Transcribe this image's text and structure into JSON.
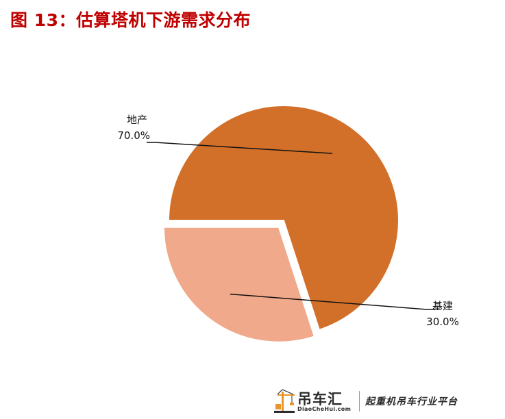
{
  "figure": {
    "title": "图 13：估算塔机下游需求分布"
  },
  "chart_data": {
    "type": "pie",
    "title": "",
    "slices": [
      {
        "label": "地产",
        "value": 70.0,
        "value_label": "70.0%",
        "color": "#d2702a",
        "exploded": false
      },
      {
        "label": "基建",
        "value": 30.0,
        "value_label": "30.0%",
        "color": "#f0a98a",
        "exploded": true
      }
    ],
    "legend": "none",
    "label_style": "outside with leader lines"
  },
  "watermark": {
    "brand": "吊车汇",
    "url": "DiaoCheHui.com",
    "slogan": "起重机吊车行业平台",
    "logo_icon": "crane-icon",
    "logo_color": "#e8952a"
  }
}
